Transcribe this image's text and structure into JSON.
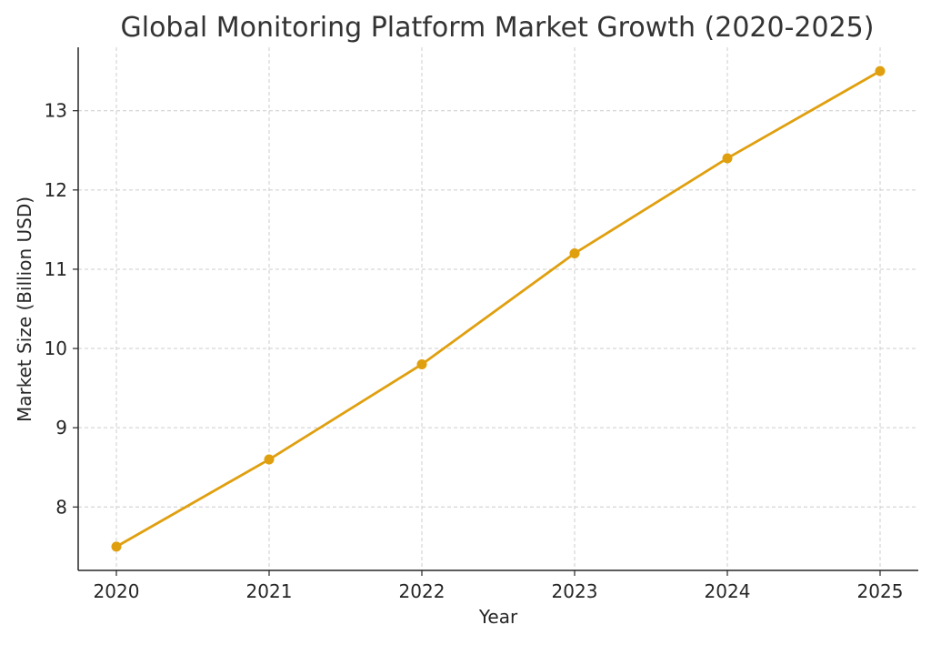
{
  "chart_data": {
    "type": "line",
    "title": "Global Monitoring Platform Market Growth (2020-2025)",
    "xlabel": "Year",
    "ylabel": "Market Size (Billion USD)",
    "x": [
      2020,
      2021,
      2022,
      2023,
      2024,
      2025
    ],
    "x_tick_labels": [
      "2020",
      "2021",
      "2022",
      "2023",
      "2024",
      "2025"
    ],
    "series": [
      {
        "values": [
          7.5,
          8.6,
          9.8,
          11.2,
          12.4,
          13.5
        ],
        "color": "#e09f0e",
        "marker": "circle"
      }
    ],
    "y_ticks": [
      8,
      9,
      10,
      11,
      12,
      13
    ],
    "y_tick_labels": [
      "8",
      "9",
      "10",
      "11",
      "12",
      "13"
    ],
    "xlim": [
      2019.75,
      2025.25
    ],
    "ylim": [
      7.2,
      13.8
    ],
    "grid": true,
    "grid_style": "dashed",
    "legend": "none"
  }
}
